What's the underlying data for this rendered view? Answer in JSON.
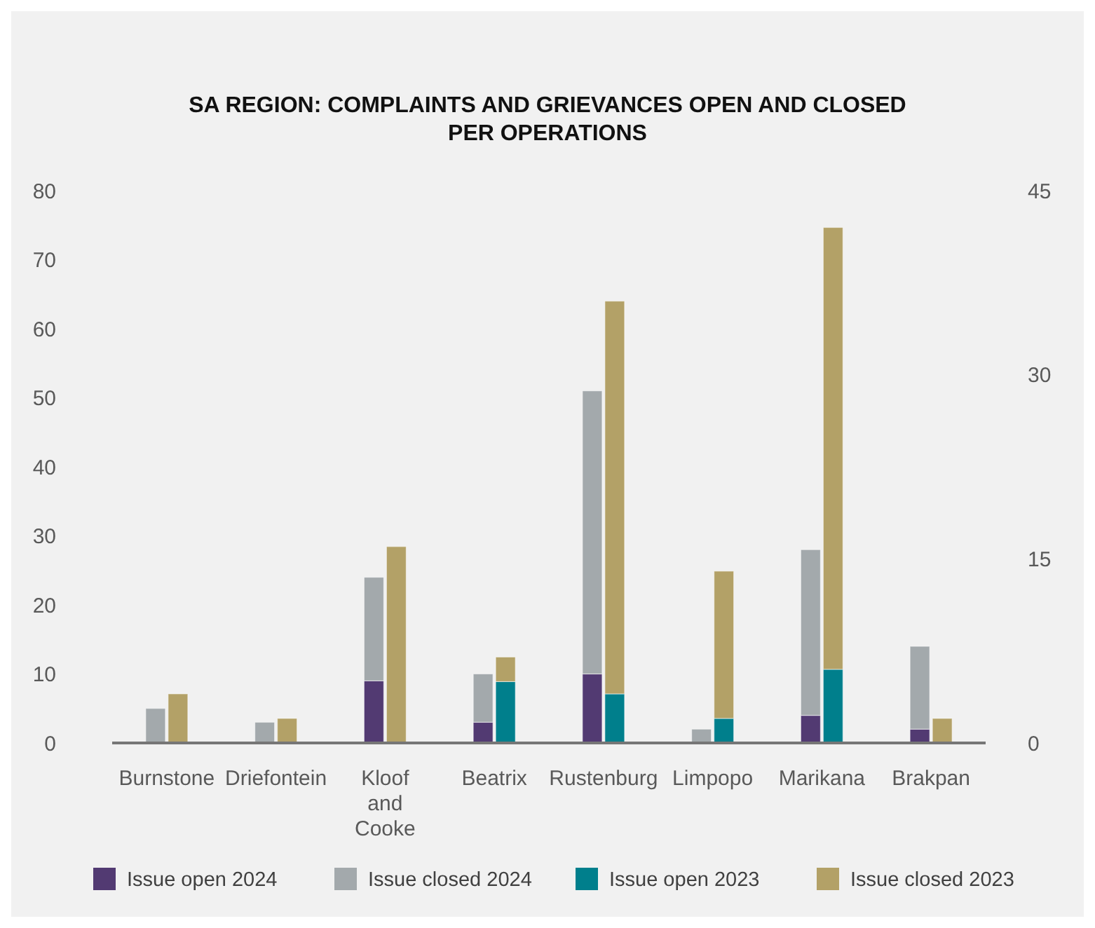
{
  "chart_data": {
    "type": "bar",
    "title": "SA REGION: COMPLAINTS AND GRIEVANCES OPEN AND CLOSED PER OPERATIONS",
    "categories": [
      "Burnstone",
      "Driefontein",
      "Kloof and Cooke",
      "Beatrix",
      "Rustenburg",
      "Limpopo",
      "Marikana",
      "Brakpan"
    ],
    "stacked": true,
    "series": [
      {
        "name": "Issue open 2024",
        "color": "#523a72",
        "values": [
          0,
          0,
          9,
          3,
          10,
          0,
          4,
          2
        ]
      },
      {
        "name": "Issue closed 2024",
        "color": "#a3a9ac",
        "values": [
          5,
          3,
          15,
          7,
          41,
          2,
          24,
          12
        ]
      },
      {
        "name": "Issue open 2023",
        "color": "#007f8c",
        "axis": "y2",
        "values": [
          0,
          0,
          0,
          5,
          4,
          2,
          6,
          0
        ]
      },
      {
        "name": "Issue closed 2023",
        "color": "#b3a167",
        "axis": "y2",
        "values": [
          4,
          2,
          16,
          2,
          32,
          12,
          36,
          2
        ]
      }
    ],
    "ylim": [
      0,
      80
    ],
    "yticks": [
      0,
      10,
      20,
      30,
      40,
      50,
      60,
      70,
      80
    ],
    "y2lim": [
      0,
      45
    ],
    "y2ticks": [
      0,
      15,
      30,
      45
    ],
    "legend": "bottom",
    "grid": false
  }
}
